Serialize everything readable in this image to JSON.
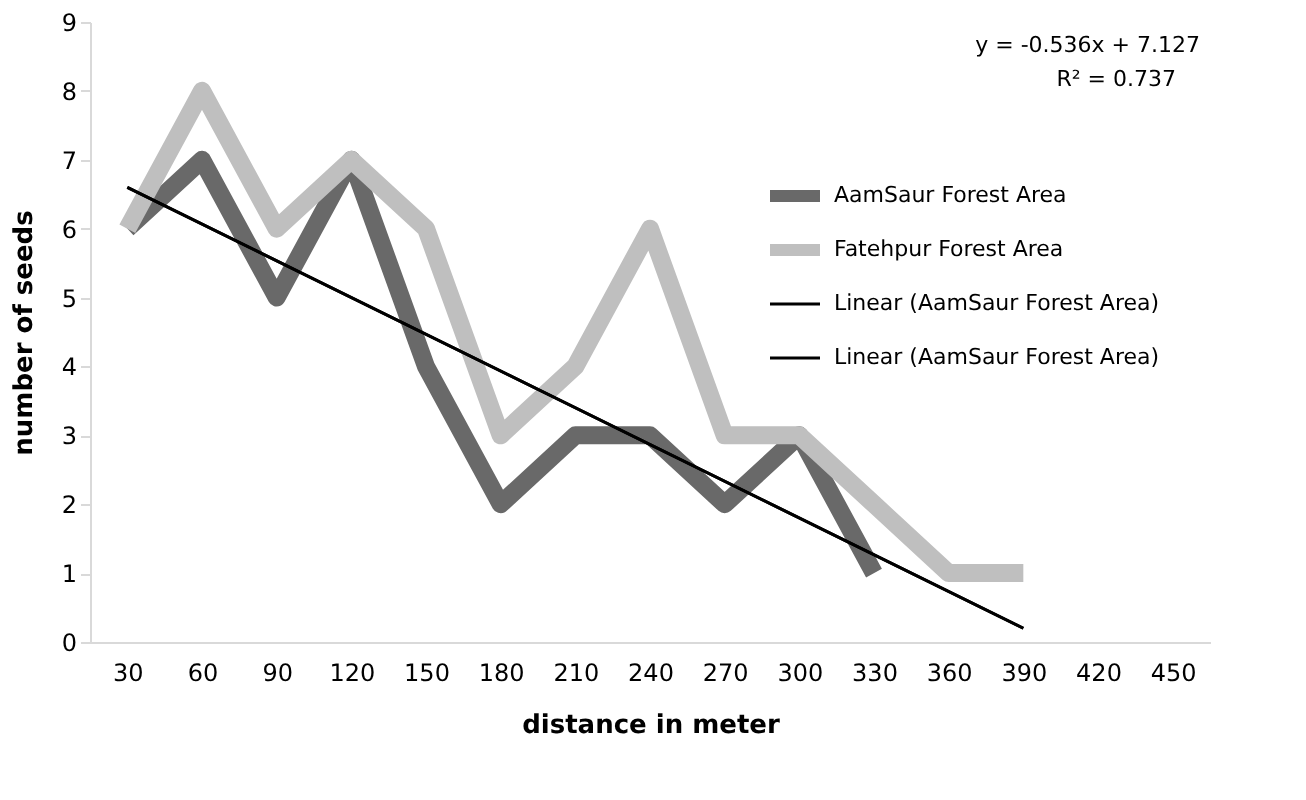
{
  "chart_data": {
    "type": "line",
    "xlabel": "distance in meter",
    "ylabel": "number of seeds",
    "categories": [
      "30",
      "60",
      "90",
      "120",
      "150",
      "180",
      "210",
      "240",
      "270",
      "300",
      "330",
      "360",
      "390",
      "420",
      "450"
    ],
    "ylim": [
      0,
      9
    ],
    "yticks": [
      0,
      1,
      2,
      3,
      4,
      5,
      6,
      7,
      8,
      9
    ],
    "grid": false,
    "legend": "right",
    "marker": "none",
    "line_style": "solid",
    "annotations": [
      "y = -0.536x + 7.127",
      "R² = 0.737"
    ],
    "series": [
      {
        "name": "AamSaur Forest Area",
        "color": "#696969",
        "values": [
          6,
          7,
          5,
          7,
          4,
          2,
          3,
          3,
          2,
          3,
          1,
          null,
          null,
          null,
          null
        ]
      },
      {
        "name": "Fatehpur Forest Area",
        "color": "#bfbfbf",
        "values": [
          6,
          8,
          6,
          7,
          6,
          3,
          4,
          6,
          3,
          3,
          2,
          1,
          1,
          null,
          null
        ]
      },
      {
        "name": "Linear (AamSaur Forest Area)",
        "color": "#000000",
        "type": "line",
        "x": [
          "30",
          "390"
        ],
        "values": [
          6.6,
          0.2
        ]
      },
      {
        "name": "Linear (AamSaur Forest Area)",
        "color": "#000000",
        "type": "line",
        "x": [
          "30",
          "390"
        ],
        "values": [
          6.6,
          0.2
        ]
      }
    ]
  }
}
